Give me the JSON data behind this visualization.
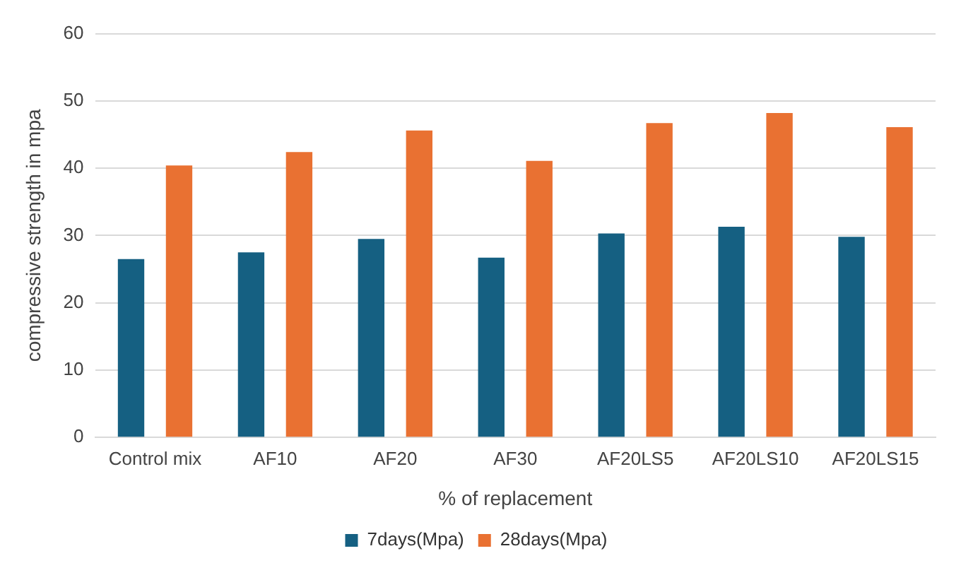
{
  "chart_data": {
    "type": "bar",
    "xlabel": "% of replacement",
    "ylabel": "compressive strength in mpa",
    "categories": [
      "Control mix",
      "AF10",
      "AF20",
      "AF30",
      "AF20LS5",
      "AF20LS10",
      "AF20LS15"
    ],
    "series": [
      {
        "name": "7days(Mpa)",
        "color": "#156082",
        "values": [
          26.5,
          27.5,
          29.5,
          26.7,
          30.3,
          31.3,
          29.8
        ]
      },
      {
        "name": "28days(Mpa)",
        "color": "#e97132",
        "values": [
          40.4,
          42.4,
          45.6,
          41.1,
          46.7,
          48.2,
          46.1
        ]
      }
    ],
    "ylim": [
      0,
      60
    ],
    "yticks": [
      0,
      10,
      20,
      30,
      40,
      50,
      60
    ],
    "grid": "y",
    "legend": "bottom"
  }
}
